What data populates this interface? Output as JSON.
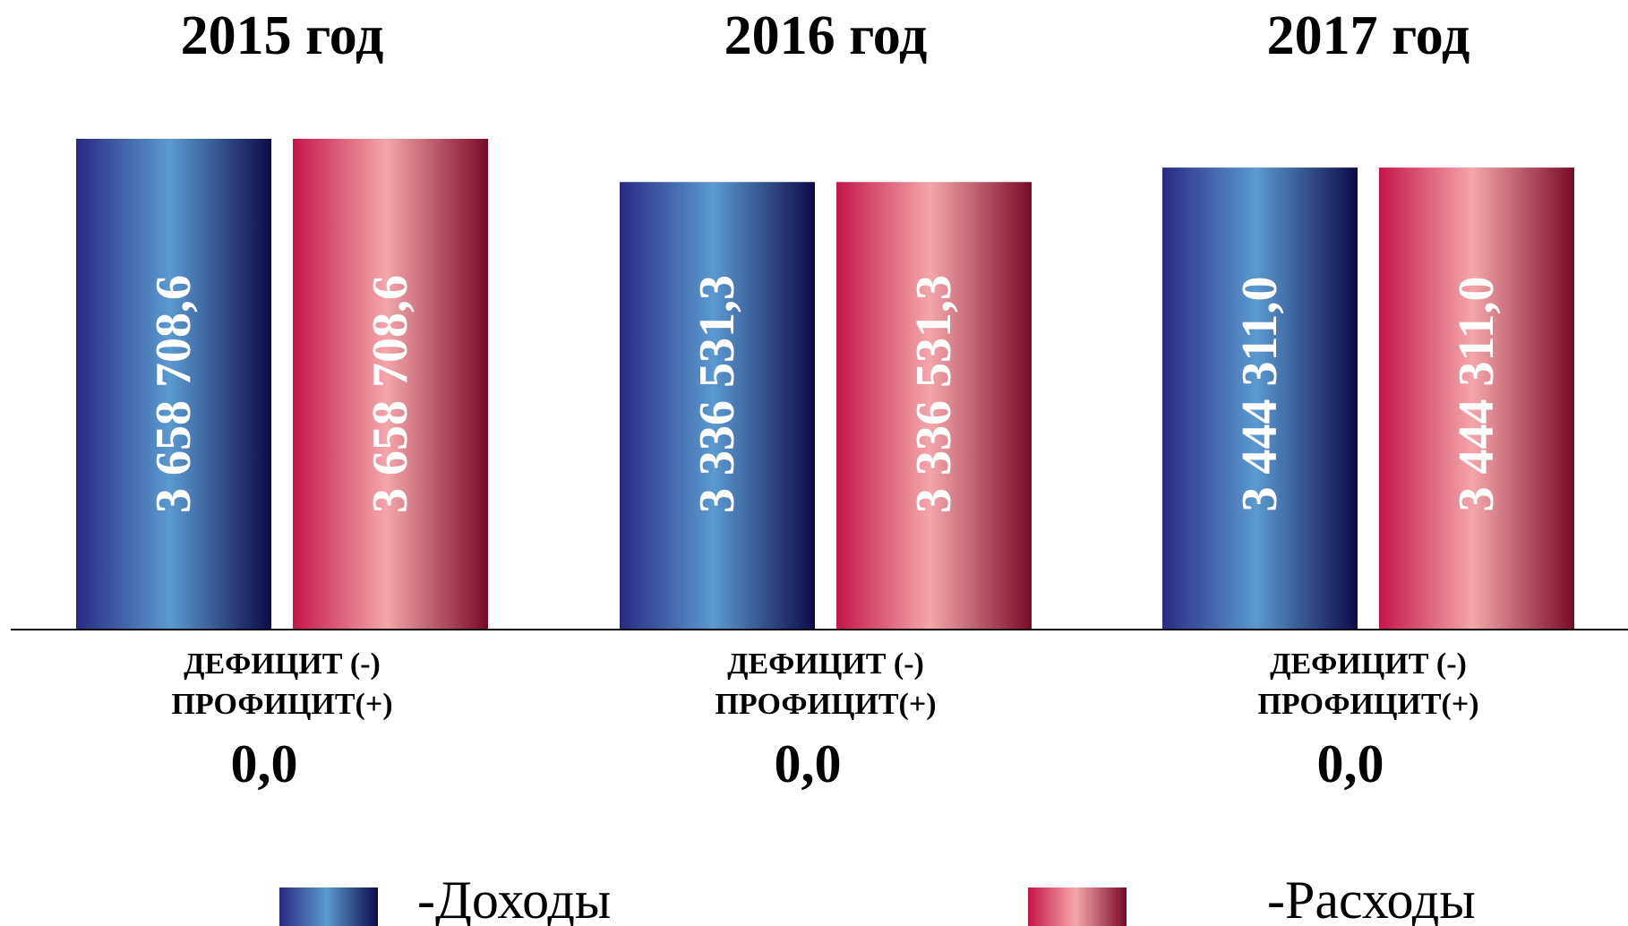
{
  "chart_data": {
    "type": "bar",
    "categories": [
      "2015 год",
      "2016 год",
      "2017 год"
    ],
    "series": [
      {
        "name": "-Доходы",
        "values": [
          3658708.6,
          3336531.3,
          3444311.0
        ],
        "labels": [
          "3 658 708,6",
          "3 336 531,3",
          "3 444 311,0"
        ]
      },
      {
        "name": "-Расходы",
        "values": [
          3658708.6,
          3336531.3,
          3444311.0
        ],
        "labels": [
          "3 658 708,6",
          "3 336 531,3",
          "3 444 311,0"
        ]
      }
    ],
    "deficit": {
      "label_line1": "ДЕФИЦИТ (-)",
      "label_line2": "ПРОФИЦИТ(+)",
      "values": [
        "0,0",
        "0,0",
        "0,0"
      ]
    },
    "legend_placement": "bottom",
    "grid": false
  },
  "colors": {
    "income": [
      "#2a2a82",
      "#5a9ad0",
      "#0e0a4a"
    ],
    "expense": [
      "#c4164a",
      "#f4a6ab",
      "#7a0a28"
    ],
    "axis": "#000000"
  }
}
